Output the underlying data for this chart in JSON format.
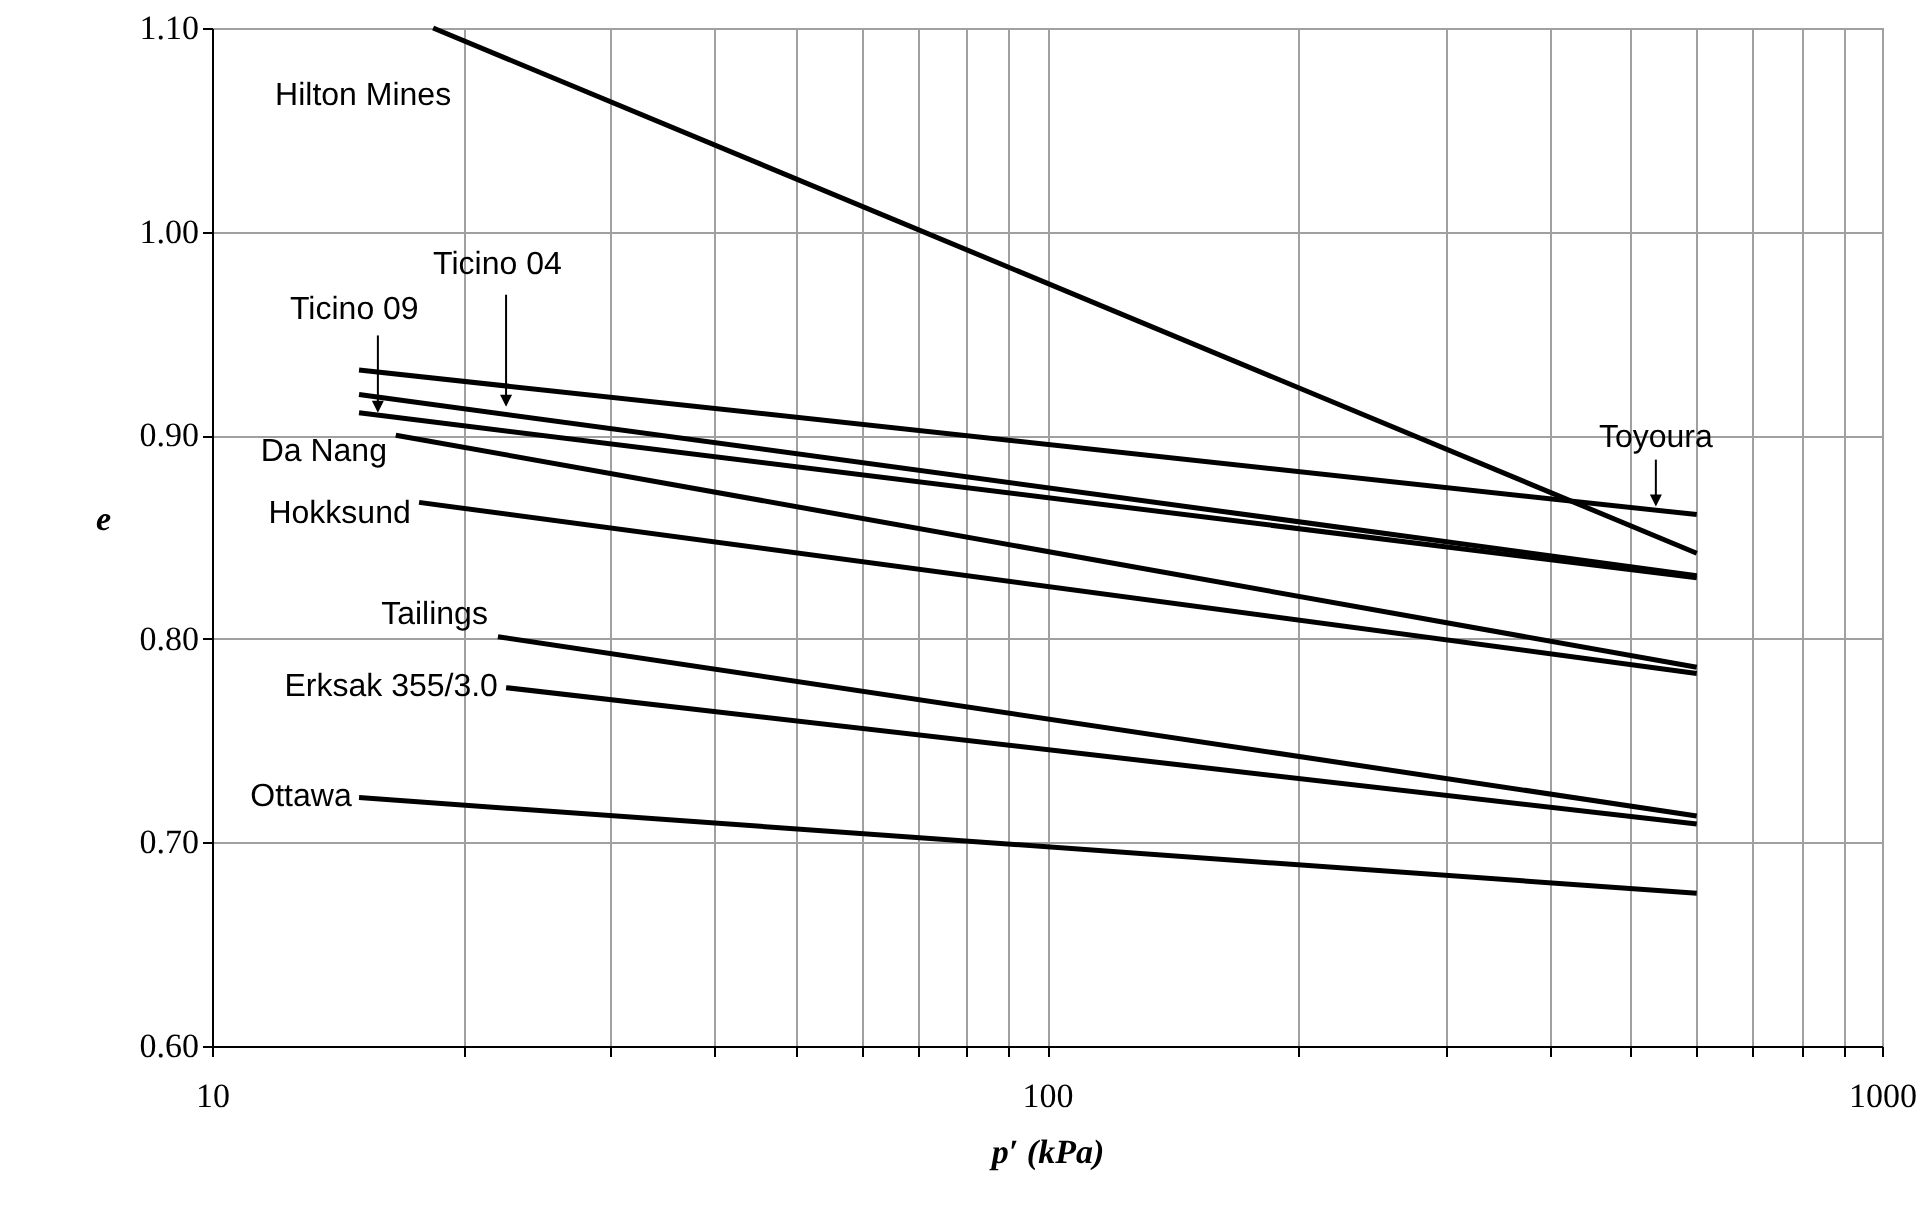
{
  "chart_data": {
    "type": "line",
    "xlabel": "p′ (kPa)",
    "ylabel": "e",
    "log": "x",
    "grid": true,
    "xlim": [
      10,
      1000
    ],
    "ylim": [
      0.6,
      1.1
    ],
    "xticks": [
      10,
      {
        "value": 20,
        "label": null
      },
      {
        "value": 30,
        "label": null
      },
      {
        "value": 40,
        "label": null
      },
      {
        "value": 50,
        "label": null
      },
      {
        "value": 60,
        "label": null
      },
      {
        "value": 70,
        "label": null
      },
      {
        "value": 80,
        "label": null
      },
      {
        "value": 90,
        "label": null
      },
      100,
      {
        "value": 200,
        "label": null
      },
      {
        "value": 300,
        "label": null
      },
      {
        "value": 400,
        "label": null
      },
      {
        "value": 500,
        "label": null
      },
      {
        "value": 600,
        "label": null
      },
      {
        "value": 700,
        "label": null
      },
      {
        "value": 800,
        "label": null
      },
      {
        "value": 900,
        "label": null
      },
      1000
    ],
    "yticks": [
      {
        "value": 0.6,
        "label": "0.60"
      },
      {
        "value": 0.7,
        "label": "0.70"
      },
      {
        "value": 0.8,
        "label": "0.80"
      },
      {
        "value": 0.9,
        "label": "0.90"
      },
      {
        "value": 1.0,
        "label": "1.00"
      },
      {
        "value": 1.1,
        "label": "1.10"
      }
    ],
    "series": [
      {
        "name": "Hilton Mines",
        "color": "#000000",
        "x": [
          18.4,
          600
        ],
        "values": [
          1.1,
          0.842
        ]
      },
      {
        "name": "Toyoura",
        "color": "#000000",
        "x": [
          15,
          600
        ],
        "values": [
          0.932,
          0.861
        ]
      },
      {
        "name": "Ticino 04",
        "color": "#000000",
        "x": [
          15,
          600
        ],
        "values": [
          0.92,
          0.831
        ]
      },
      {
        "name": "Ticino 09",
        "color": "#000000",
        "x": [
          15,
          600
        ],
        "values": [
          0.911,
          0.83
        ]
      },
      {
        "name": "Da Nang",
        "color": "#000000",
        "x": [
          16.6,
          600
        ],
        "values": [
          0.9,
          0.786
        ]
      },
      {
        "name": "Hokksund",
        "color": "#000000",
        "x": [
          17.7,
          600
        ],
        "values": [
          0.867,
          0.783
        ]
      },
      {
        "name": "Tailings",
        "color": "#000000",
        "x": [
          22,
          600
        ],
        "values": [
          0.801,
          0.713
        ]
      },
      {
        "name": "Erksak 355/3.0",
        "color": "#000000",
        "x": [
          22.5,
          600
        ],
        "values": [
          0.776,
          0.709
        ]
      },
      {
        "name": "Ottawa",
        "color": "#000000",
        "x": [
          15,
          600
        ],
        "values": [
          0.722,
          0.675
        ]
      }
    ]
  }
}
